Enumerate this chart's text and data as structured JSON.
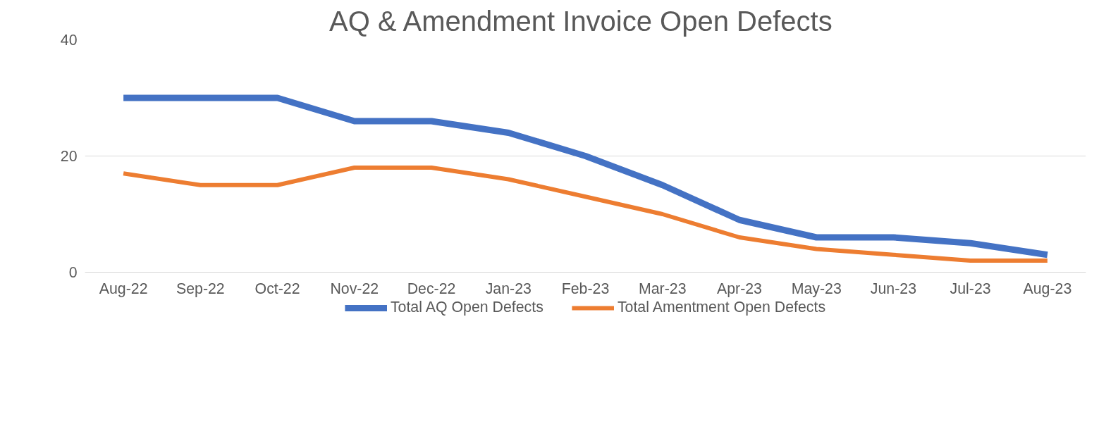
{
  "chart_data": {
    "type": "line",
    "title": "AQ & Amendment  Invoice Open Defects",
    "categories": [
      "Aug-22",
      "Sep-22",
      "Oct-22",
      "Nov-22",
      "Dec-22",
      "Jan-23",
      "Feb-23",
      "Mar-23",
      "Apr-23",
      "May-23",
      "Jun-23",
      "Jul-23",
      "Aug-23"
    ],
    "series": [
      {
        "name": "Total AQ Open Defects",
        "color": "#4472c4",
        "values": [
          30,
          30,
          30,
          26,
          26,
          24,
          20,
          15,
          9,
          6,
          6,
          5,
          3
        ]
      },
      {
        "name": "Total Amentment Open Defects",
        "color": "#ed7d31",
        "values": [
          17,
          15,
          15,
          18,
          18,
          16,
          13,
          10,
          6,
          4,
          3,
          2,
          2
        ]
      }
    ],
    "ylim": [
      0,
      40
    ],
    "yticks": [
      0,
      20,
      40
    ],
    "grid": "y",
    "legend": "bottom",
    "marker": "none",
    "line_style": "solid"
  }
}
